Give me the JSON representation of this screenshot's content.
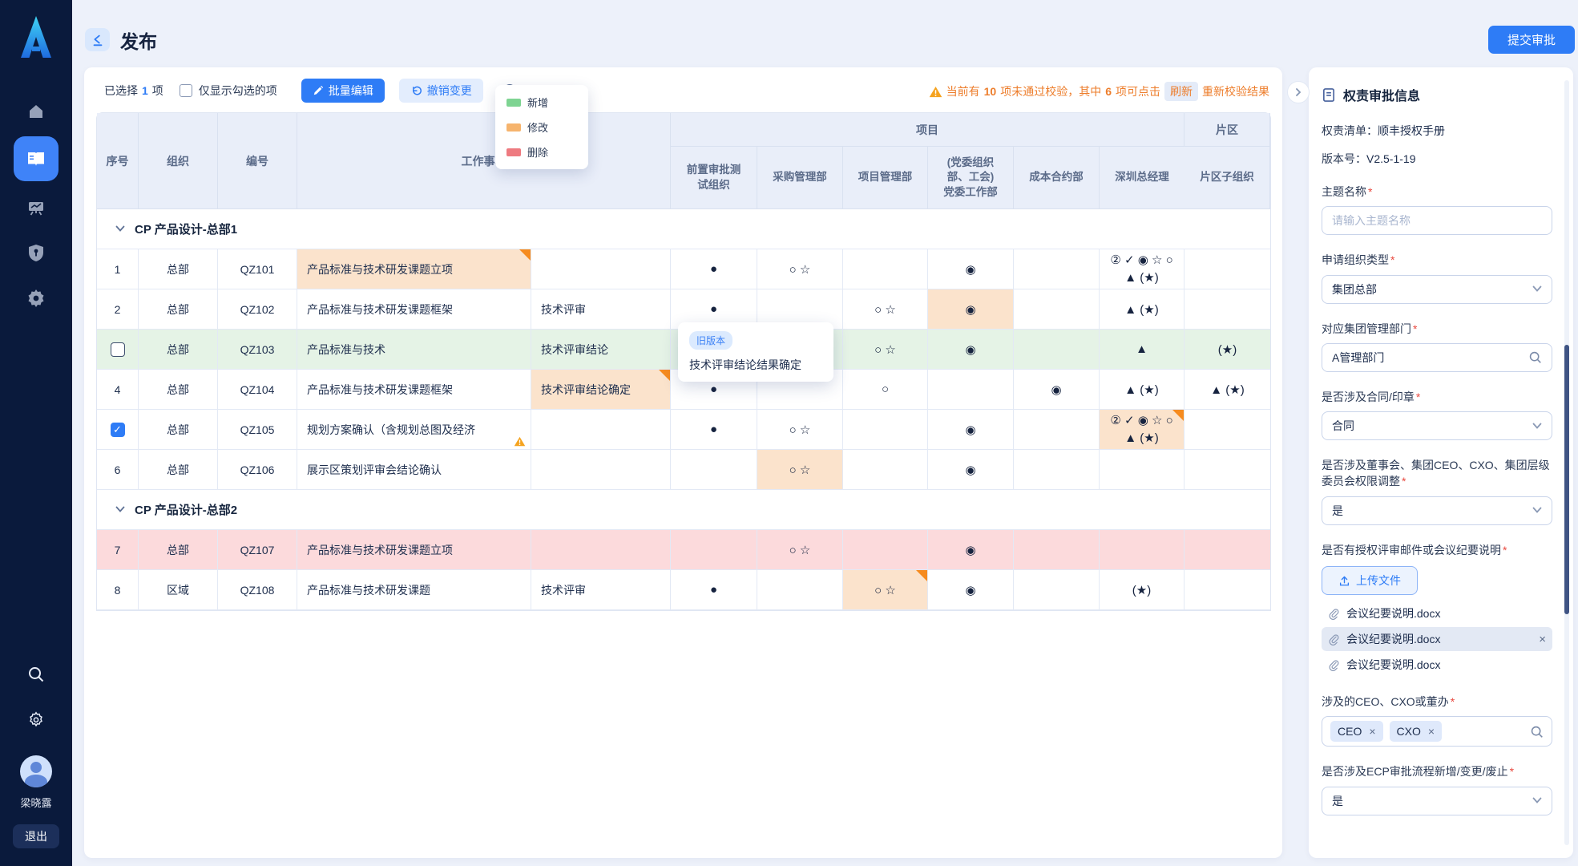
{
  "sidebar": {
    "user_name": "梁晓露",
    "logout_label": "退出"
  },
  "header": {
    "title": "发布",
    "submit_label": "提交审批"
  },
  "toolbar": {
    "selected_prefix": "已选择",
    "selected_count": "1",
    "selected_suffix": "项",
    "show_checked_label": "仅显示勾选的项",
    "batch_edit_label": "批量编辑",
    "undo_label": "撤销变更",
    "legend": [
      {
        "label": "新增",
        "color": "#7ed492"
      },
      {
        "label": "修改",
        "color": "#f6b46d"
      },
      {
        "label": "删除",
        "color": "#ee7a80"
      }
    ],
    "warning": {
      "text_before_count": "当前有",
      "count_invalid": "10",
      "text_mid": "项未通过校验，其中",
      "count_clickable": "6",
      "text_mid2": "项可点击",
      "refresh_label": "刷新",
      "text_after": "重新校验结果"
    }
  },
  "table": {
    "corner_headers": [
      "序号",
      "组织",
      "编号",
      "工作事项"
    ],
    "group_headers": [
      {
        "label": "项目",
        "span": 6
      },
      {
        "label": "片区",
        "span": 1
      }
    ],
    "sub_headers": [
      "前置审批测\n试组织",
      "采购管理部",
      "项目管理部",
      "(党委组织\n部、工会)\n党委工作部",
      "成本合约部",
      "深圳总经理",
      "片区子组织"
    ],
    "groups": [
      {
        "title": "CP 产品设计-总部1",
        "rows": [
          {
            "num": "1",
            "org": "总部",
            "code": "QZ101",
            "item": "产品标准与技术研发课题立项",
            "item_bg": true,
            "item_corner": true,
            "stage": "",
            "cells": [
              {
                "s": "●"
              },
              {
                "s": "○ ☆"
              },
              {},
              {
                "s": "◉"
              },
              {},
              {
                "s": "② ✓ ◉ ☆ ○",
                "s2": "▲ (★)"
              },
              {}
            ]
          },
          {
            "num": "2",
            "org": "总部",
            "code": "QZ102",
            "item": "产品标准与技术研发课题框架",
            "stage": "技术评审",
            "cells": [
              {
                "s": "●"
              },
              {},
              {
                "s": "○ ☆"
              },
              {
                "s": "◉",
                "bg": true
              },
              {},
              {
                "s": "▲ (★)"
              },
              {}
            ]
          },
          {
            "checkbox": "unchecked",
            "org": "总部",
            "code": "QZ103",
            "item": "产品标准与技术",
            "stage": "技术评审结论",
            "row_bg": "green",
            "cells": [
              {},
              {},
              {
                "s": "○ ☆"
              },
              {
                "s": "◉"
              },
              {},
              {
                "s": "▲"
              },
              {
                "s": "(★)"
              }
            ]
          },
          {
            "num": "4",
            "org": "总部",
            "code": "QZ104",
            "item": "产品标准与技术研发课题框架",
            "stage": "技术评审结论确定",
            "stage_bg": true,
            "stage_corner": true,
            "cells": [
              {
                "s": "●"
              },
              {},
              {
                "s": "○"
              },
              {},
              {
                "s": "◉"
              },
              {
                "s": "▲ (★)"
              },
              {
                "s": "▲ (★)"
              }
            ]
          },
          {
            "checkbox": "checked",
            "org": "总部",
            "code": "QZ105",
            "item": "规划方案确认（含规划总图及经济",
            "item_warn": true,
            "stage": "",
            "cells": [
              {
                "s": "●"
              },
              {
                "s": "○ ☆"
              },
              {},
              {
                "s": "◉"
              },
              {},
              {
                "s": "② ✓ ◉ ☆ ○",
                "s2": "▲ (★)",
                "bg": true,
                "corner": true
              },
              {}
            ]
          },
          {
            "num": "6",
            "org": "总部",
            "code": "QZ106",
            "item": "展示区策划评审会结论确认",
            "stage": "",
            "cells": [
              {},
              {
                "s": "○ ☆",
                "bg": true
              },
              {},
              {
                "s": "◉"
              },
              {},
              {},
              {}
            ]
          }
        ]
      },
      {
        "title": "CP 产品设计-总部2",
        "rows": [
          {
            "num": "7",
            "org": "总部",
            "code": "QZ107",
            "item": "产品标准与技术研发课题立项",
            "stage": "",
            "row_bg": "pink",
            "cells": [
              {},
              {
                "s": "○ ☆"
              },
              {},
              {
                "s": "◉"
              },
              {},
              {},
              {}
            ]
          },
          {
            "num": "8",
            "org": "区域",
            "code": "QZ108",
            "item": "产品标准与技术研发课题",
            "stage": "技术评审",
            "cells": [
              {
                "s": "●"
              },
              {},
              {
                "s": "○ ☆",
                "bg": true,
                "corner": true
              },
              {
                "s": "◉"
              },
              {},
              {
                "s": "(★)"
              },
              {}
            ]
          }
        ]
      }
    ]
  },
  "tooltip": {
    "badge": "旧版本",
    "text": "技术评审结论结果确定"
  },
  "panel": {
    "title": "权责审批信息",
    "meta": [
      {
        "label": "权责清单：",
        "value": "顺丰授权手册"
      },
      {
        "label": "版本号：",
        "value": "V2.5-1-19"
      }
    ],
    "fields": [
      {
        "type": "input",
        "label": "主题名称",
        "required": true,
        "placeholder": "请输入主题名称"
      },
      {
        "type": "select",
        "label": "申请组织类型",
        "required": true,
        "value": "集团总部"
      },
      {
        "type": "search",
        "label": "对应集团管理部门",
        "required": true,
        "value": "A管理部门"
      },
      {
        "type": "select",
        "label": "是否涉及合同/印章",
        "required": true,
        "value": "合同"
      },
      {
        "type": "select",
        "label": "是否涉及董事会、集团CEO、CXO、集团层级委员会权限调整",
        "required": true,
        "value": "是"
      },
      {
        "type": "upload",
        "label": "是否有授权评审邮件或会议纪要说明",
        "required": true,
        "button_label": "上传文件",
        "files": [
          {
            "name": "会议纪要说明.docx",
            "active": false
          },
          {
            "name": "会议纪要说明.docx",
            "active": true
          },
          {
            "name": "会议纪要说明.docx",
            "active": false
          }
        ]
      },
      {
        "type": "tags",
        "label": "涉及的CEO、CXO或董办",
        "required": true,
        "tags": [
          "CEO",
          "CXO"
        ]
      },
      {
        "type": "select",
        "label": "是否涉及ECP审批流程新增/变更/废止",
        "required": true,
        "value": "是"
      }
    ]
  }
}
